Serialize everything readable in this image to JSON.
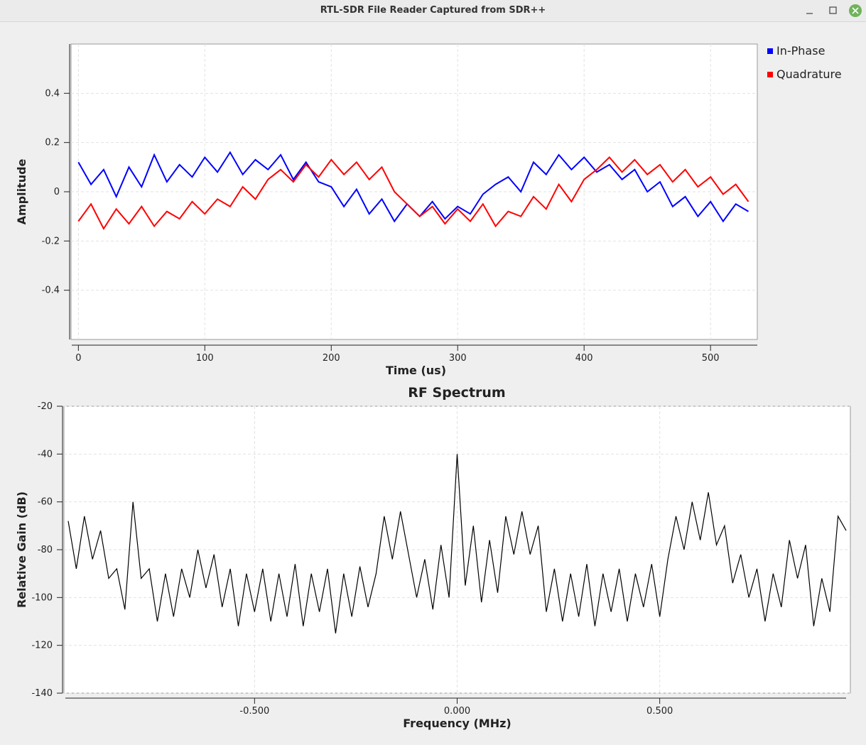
{
  "window_title": "RTL-SDR File Reader Captured from SDR++",
  "chart_data": [
    {
      "type": "line",
      "xlabel": "Time (us)",
      "ylabel": "Amplitude",
      "xlim": [
        -3,
        537
      ],
      "xticks": [
        0,
        100,
        200,
        300,
        400,
        500
      ],
      "ylim": [
        -0.6,
        0.6
      ],
      "yticks": [
        0.4,
        0.2,
        0,
        -0.2,
        -0.4
      ],
      "grid": true,
      "legend": "right",
      "x": [
        0,
        10,
        20,
        30,
        40,
        50,
        60,
        70,
        80,
        90,
        100,
        110,
        120,
        130,
        140,
        150,
        160,
        170,
        180,
        190,
        200,
        210,
        220,
        230,
        240,
        250,
        260,
        270,
        280,
        290,
        300,
        310,
        320,
        330,
        340,
        350,
        360,
        370,
        380,
        390,
        400,
        410,
        420,
        430,
        440,
        450,
        460,
        470,
        480,
        490,
        500,
        510,
        520,
        530
      ],
      "series": [
        {
          "name": "In-Phase",
          "color": "#0000ff",
          "values": [
            0.12,
            0.03,
            0.09,
            -0.02,
            0.1,
            0.02,
            0.15,
            0.04,
            0.11,
            0.06,
            0.14,
            0.08,
            0.16,
            0.07,
            0.13,
            0.09,
            0.15,
            0.05,
            0.12,
            0.04,
            0.02,
            -0.06,
            0.01,
            -0.09,
            -0.03,
            -0.12,
            -0.05,
            -0.1,
            -0.04,
            -0.11,
            -0.06,
            -0.09,
            -0.01,
            0.03,
            0.06,
            0.0,
            0.12,
            0.07,
            0.15,
            0.09,
            0.14,
            0.08,
            0.11,
            0.05,
            0.09,
            0.0,
            0.04,
            -0.06,
            -0.02,
            -0.1,
            -0.04,
            -0.12,
            -0.05,
            -0.08
          ]
        },
        {
          "name": "Quadrature",
          "color": "#ff0000",
          "values": [
            -0.12,
            -0.05,
            -0.15,
            -0.07,
            -0.13,
            -0.06,
            -0.14,
            -0.08,
            -0.11,
            -0.04,
            -0.09,
            -0.03,
            -0.06,
            0.02,
            -0.03,
            0.05,
            0.09,
            0.04,
            0.11,
            0.06,
            0.13,
            0.07,
            0.12,
            0.05,
            0.1,
            0.0,
            -0.05,
            -0.1,
            -0.06,
            -0.13,
            -0.07,
            -0.12,
            -0.05,
            -0.14,
            -0.08,
            -0.1,
            -0.02,
            -0.07,
            0.03,
            -0.04,
            0.05,
            0.09,
            0.14,
            0.08,
            0.13,
            0.07,
            0.11,
            0.04,
            0.09,
            0.02,
            0.06,
            -0.01,
            0.03,
            -0.04
          ]
        }
      ]
    },
    {
      "type": "line",
      "title": "RF Spectrum",
      "xlabel": "Frequency (MHz)",
      "ylabel": "Relative Gain (dB)",
      "xlim": [
        -0.96,
        0.96
      ],
      "xticks": [
        {
          "value": -0.5,
          "label": "-0.500"
        },
        {
          "value": 0,
          "label": "0.000"
        },
        {
          "value": 0.5,
          "label": "0.500"
        }
      ],
      "ylim": [
        -140,
        -20
      ],
      "yticks": [
        -20,
        -40,
        -60,
        -80,
        -100,
        -120,
        -140
      ],
      "grid": true,
      "x": [
        -0.96,
        -0.94,
        -0.92,
        -0.9,
        -0.88,
        -0.86,
        -0.84,
        -0.82,
        -0.8,
        -0.78,
        -0.76,
        -0.74,
        -0.72,
        -0.7,
        -0.68,
        -0.66,
        -0.64,
        -0.62,
        -0.6,
        -0.58,
        -0.56,
        -0.54,
        -0.52,
        -0.5,
        -0.48,
        -0.46,
        -0.44,
        -0.42,
        -0.4,
        -0.38,
        -0.36,
        -0.34,
        -0.32,
        -0.3,
        -0.28,
        -0.26,
        -0.24,
        -0.22,
        -0.2,
        -0.18,
        -0.16,
        -0.14,
        -0.12,
        -0.1,
        -0.08,
        -0.06,
        -0.04,
        -0.02,
        0,
        0.02,
        0.04,
        0.06,
        0.08,
        0.1,
        0.12,
        0.14,
        0.16,
        0.18,
        0.2,
        0.22,
        0.24,
        0.26,
        0.28,
        0.3,
        0.32,
        0.34,
        0.36,
        0.38,
        0.4,
        0.42,
        0.44,
        0.46,
        0.48,
        0.5,
        0.52,
        0.54,
        0.56,
        0.58,
        0.6,
        0.62,
        0.64,
        0.66,
        0.68,
        0.7,
        0.72,
        0.74,
        0.76,
        0.78,
        0.8,
        0.82,
        0.84,
        0.86,
        0.88,
        0.9,
        0.92,
        0.94,
        0.96
      ],
      "series": [
        {
          "color": "#000000",
          "values": [
            -68,
            -88,
            -66,
            -84,
            -72,
            -92,
            -88,
            -105,
            -60,
            -92,
            -88,
            -110,
            -90,
            -108,
            -88,
            -100,
            -80,
            -96,
            -82,
            -104,
            -88,
            -112,
            -90,
            -106,
            -88,
            -110,
            -90,
            -108,
            -86,
            -112,
            -90,
            -106,
            -88,
            -115,
            -90,
            -108,
            -87,
            -104,
            -90,
            -66,
            -84,
            -64,
            -82,
            -100,
            -84,
            -105,
            -78,
            -100,
            -40,
            -95,
            -70,
            -102,
            -76,
            -98,
            -66,
            -82,
            -64,
            -82,
            -70,
            -106,
            -88,
            -110,
            -90,
            -108,
            -86,
            -112,
            -90,
            -106,
            -88,
            -110,
            -90,
            -104,
            -86,
            -108,
            -84,
            -66,
            -80,
            -60,
            -76,
            -56,
            -78,
            -70,
            -94,
            -82,
            -100,
            -88,
            -110,
            -90,
            -104,
            -76,
            -92,
            -78,
            -112,
            -92,
            -106,
            -66,
            -72
          ]
        }
      ]
    }
  ]
}
